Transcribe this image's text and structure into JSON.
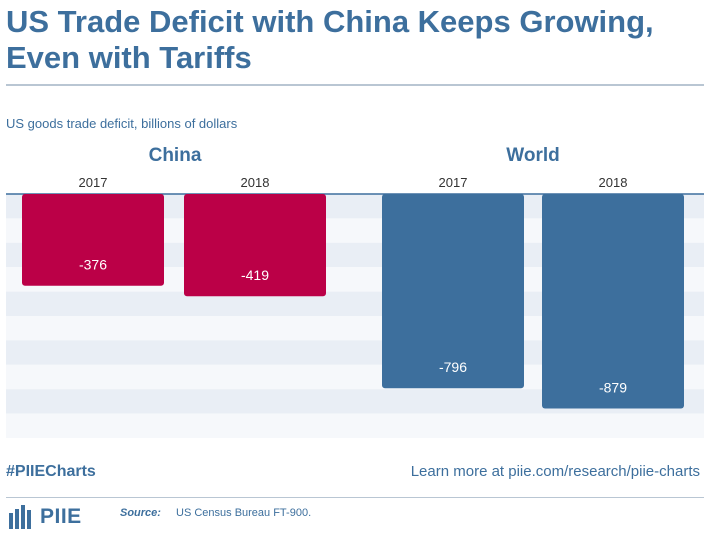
{
  "title": "US Trade Deficit with China Keeps Growing, Even with Tariffs",
  "subtitle": "US goods trade deficit, billions of dollars",
  "footer": {
    "hashtag": "#PIIECharts",
    "learn_more": "Learn more at piie.com/research/piie-charts",
    "logo_text": "PIIE",
    "source_label": "Source:",
    "source_text": "US Census Bureau FT-900."
  },
  "colors": {
    "china": "#bb0047",
    "world": "#3d6f9d",
    "band": "#e9eef5",
    "text": "#3d6f9d"
  },
  "chart_data": {
    "type": "bar",
    "groups": [
      {
        "name": "China",
        "categories": [
          "2017",
          "2018"
        ],
        "values": [
          -376,
          -419
        ]
      },
      {
        "name": "World",
        "categories": [
          "2017",
          "2018"
        ],
        "values": [
          -796,
          -879
        ]
      }
    ],
    "ylim": [
      -1000,
      0
    ],
    "grid": "alternating horizontal bands"
  }
}
